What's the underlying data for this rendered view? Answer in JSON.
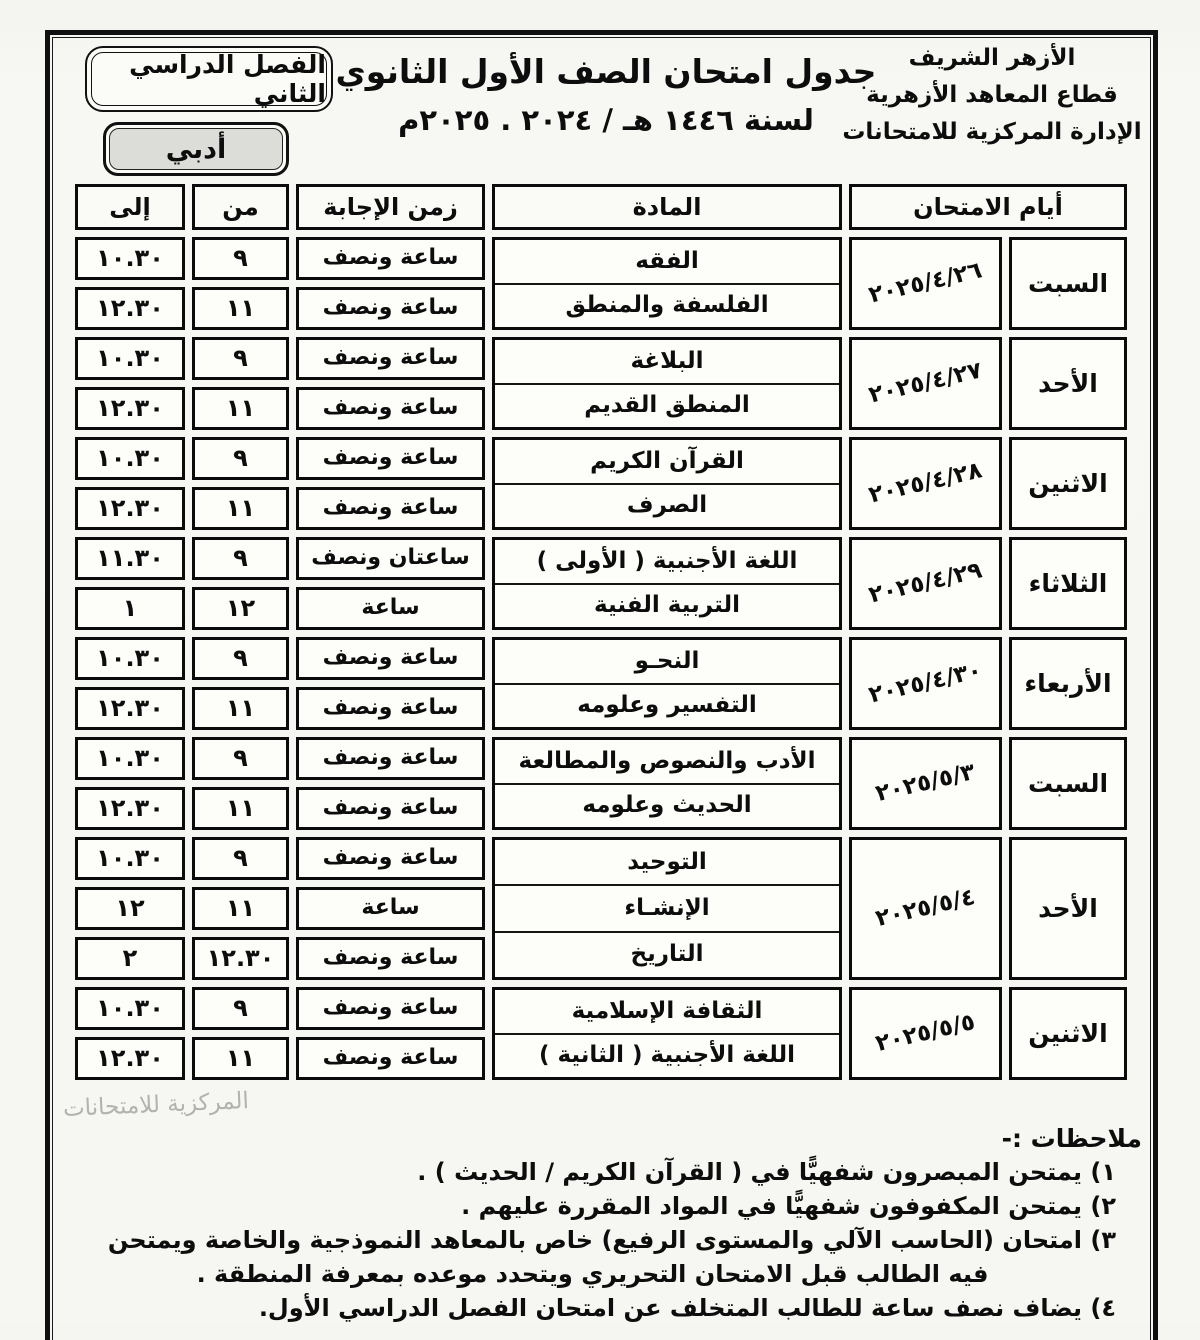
{
  "document": {
    "org": {
      "line1": "الأزهر الشريف",
      "line2": "قطاع المعاهد الأزهرية",
      "line3": "الإدارة المركزية للامتحانات"
    },
    "semester_label": "الفصل الدراسي الثاني",
    "track_label": "أدبي",
    "title_line1": "جدول امتحان الصف الأول الثانوي",
    "title_line2": "لسنة ١٤٤٦ هـ / ٢٠٢٤ . ٢٠٢٥م",
    "watermark_text": "المركزية للامتحانات"
  },
  "table": {
    "headers": {
      "to": "إلى",
      "from": "من",
      "duration": "زمن الإجابة",
      "subject": "المادة",
      "exam_days": "أيام الامتحان"
    },
    "groups": [
      {
        "day": "السبت",
        "date": "٢٠٢٥/٤/٢٦",
        "rows": [
          {
            "subject": "الفقه",
            "duration": "ساعة ونصف",
            "from": "٩",
            "to": "١٠.٣٠"
          },
          {
            "subject": "الفلسفة والمنطق",
            "duration": "ساعة ونصف",
            "from": "١١",
            "to": "١٢.٣٠"
          }
        ]
      },
      {
        "day": "الأحد",
        "date": "٢٠٢٥/٤/٢٧",
        "rows": [
          {
            "subject": "البلاغة",
            "duration": "ساعة ونصف",
            "from": "٩",
            "to": "١٠.٣٠"
          },
          {
            "subject": "المنطق القديم",
            "duration": "ساعة ونصف",
            "from": "١١",
            "to": "١٢.٣٠"
          }
        ]
      },
      {
        "day": "الاثنين",
        "date": "٢٠٢٥/٤/٢٨",
        "rows": [
          {
            "subject": "القرآن الكريم",
            "duration": "ساعة ونصف",
            "from": "٩",
            "to": "١٠.٣٠"
          },
          {
            "subject": "الصرف",
            "duration": "ساعة ونصف",
            "from": "١١",
            "to": "١٢.٣٠"
          }
        ]
      },
      {
        "day": "الثلاثاء",
        "date": "٢٠٢٥/٤/٢٩",
        "rows": [
          {
            "subject": "اللغة الأجنبية ( الأولى )",
            "duration": "ساعتان ونصف",
            "from": "٩",
            "to": "١١.٣٠"
          },
          {
            "subject": "التربية الفنية",
            "duration": "ساعة",
            "from": "١٢",
            "to": "١"
          }
        ]
      },
      {
        "day": "الأربعاء",
        "date": "٢٠٢٥/٤/٣٠",
        "rows": [
          {
            "subject": "النحـو",
            "duration": "ساعة ونصف",
            "from": "٩",
            "to": "١٠.٣٠"
          },
          {
            "subject": "التفسير وعلومه",
            "duration": "ساعة ونصف",
            "from": "١١",
            "to": "١٢.٣٠"
          }
        ]
      },
      {
        "day": "السبت",
        "date": "٢٠٢٥/٥/٣",
        "rows": [
          {
            "subject": "الأدب والنصوص والمطالعة",
            "duration": "ساعة ونصف",
            "from": "٩",
            "to": "١٠.٣٠"
          },
          {
            "subject": "الحديث وعلومه",
            "duration": "ساعة ونصف",
            "from": "١١",
            "to": "١٢.٣٠"
          }
        ]
      },
      {
        "day": "الأحد",
        "date": "٢٠٢٥/٥/٤",
        "rows": [
          {
            "subject": "التوحيد",
            "duration": "ساعة ونصف",
            "from": "٩",
            "to": "١٠.٣٠"
          },
          {
            "subject": "الإنشـاء",
            "duration": "ساعة",
            "from": "١١",
            "to": "١٢"
          },
          {
            "subject": "التاريخ",
            "duration": "ساعة ونصف",
            "from": "١٢.٣٠",
            "to": "٢"
          }
        ]
      },
      {
        "day": "الاثنين",
        "date": "٢٠٢٥/٥/٥",
        "rows": [
          {
            "subject": "الثقافة الإسلامية",
            "duration": "ساعة ونصف",
            "from": "٩",
            "to": "١٠.٣٠"
          },
          {
            "subject": "اللغة الأجنبية ( الثانية )",
            "duration": "ساعة ونصف",
            "from": "١١",
            "to": "١٢.٣٠"
          }
        ]
      }
    ]
  },
  "notes": {
    "heading": "ملاحظات :-",
    "items": [
      "١) يمتحن المبصرون شفهيًّا في ( القرآن الكريم / الحديث ) .",
      "٢) يمتحن المكفوفون شفهيًّا في المواد المقررة عليهم .",
      "٣) امتحان (الحاسب الآلي والمستوى الرفيع) خاص بالمعاهد النموذجية والخاصة ويمتحن فيه الطالب قبل الامتحان التحريري ويتحدد موعده بمعرفة المنطقة .",
      "٤) يضاف نصف ساعة للطالب المتخلف عن امتحان الفصل الدراسي الأول."
    ]
  }
}
